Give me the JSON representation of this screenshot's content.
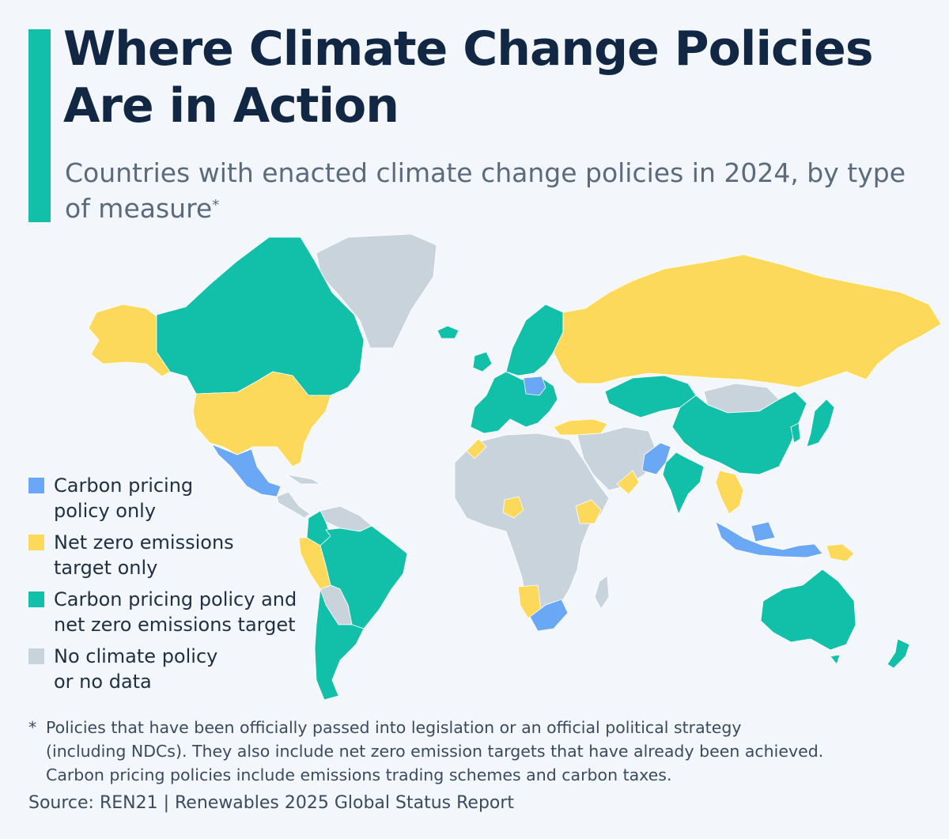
{
  "header": {
    "title": "Where Climate Change Policies Are in Action",
    "subtitle": "Countries with enacted climate change policies in 2024, by type of measure",
    "subtitle_mark": "*"
  },
  "colors": {
    "accent": "#12bfa9",
    "carbon_pricing_only": "#6aa8f5",
    "net_zero_only": "#fcd95a",
    "both": "#12bfa9",
    "none": "#c9d3dc"
  },
  "legend": {
    "items": [
      {
        "key": "carbon_pricing_only",
        "label": "Carbon pricing\npolicy only",
        "color": "#6aa8f5"
      },
      {
        "key": "net_zero_only",
        "label": "Net zero emissions\ntarget only",
        "color": "#fcd95a"
      },
      {
        "key": "both",
        "label": "Carbon pricing policy and\nnet zero emissions target",
        "color": "#12bfa9"
      },
      {
        "key": "none",
        "label": "No climate policy\nor no data",
        "color": "#c9d3dc"
      }
    ]
  },
  "footnote": {
    "marker": "*",
    "text": "Policies that have been officially passed into legislation or an official political strategy\n(including NDCs). They also include net zero emission targets that have already been achieved.\nCarbon pricing policies include emissions trading schemes and carbon taxes."
  },
  "source": "Source: REN21 | Renewables 2025 Global Status Report",
  "map": {
    "regions": [
      {
        "name": "alaska",
        "category": "net_zero_only"
      },
      {
        "name": "canada",
        "category": "both"
      },
      {
        "name": "greenland",
        "category": "none"
      },
      {
        "name": "iceland",
        "category": "both"
      },
      {
        "name": "usa",
        "category": "net_zero_only"
      },
      {
        "name": "mexico",
        "category": "carbon_pricing_only"
      },
      {
        "name": "central-america",
        "category": "none"
      },
      {
        "name": "colombia",
        "category": "both"
      },
      {
        "name": "venezuela",
        "category": "none"
      },
      {
        "name": "peru",
        "category": "net_zero_only"
      },
      {
        "name": "brazil",
        "category": "both"
      },
      {
        "name": "bolivia",
        "category": "none"
      },
      {
        "name": "chile-argentina",
        "category": "both"
      },
      {
        "name": "western-europe",
        "category": "both"
      },
      {
        "name": "poland",
        "category": "carbon_pricing_only"
      },
      {
        "name": "scandinavia",
        "category": "both"
      },
      {
        "name": "russia",
        "category": "net_zero_only"
      },
      {
        "name": "kazakhstan",
        "category": "both"
      },
      {
        "name": "mongolia",
        "category": "none"
      },
      {
        "name": "china",
        "category": "both"
      },
      {
        "name": "japan",
        "category": "both"
      },
      {
        "name": "korea",
        "category": "both"
      },
      {
        "name": "turkey",
        "category": "net_zero_only"
      },
      {
        "name": "middle-east",
        "category": "none"
      },
      {
        "name": "oman",
        "category": "net_zero_only"
      },
      {
        "name": "pakistan",
        "category": "carbon_pricing_only"
      },
      {
        "name": "india",
        "category": "both"
      },
      {
        "name": "southeast-asia",
        "category": "net_zero_only"
      },
      {
        "name": "indonesia",
        "category": "carbon_pricing_only"
      },
      {
        "name": "png",
        "category": "net_zero_only"
      },
      {
        "name": "africa",
        "category": "none"
      },
      {
        "name": "morocco",
        "category": "net_zero_only"
      },
      {
        "name": "nigeria",
        "category": "net_zero_only"
      },
      {
        "name": "ethiopia",
        "category": "net_zero_only"
      },
      {
        "name": "namibia",
        "category": "net_zero_only"
      },
      {
        "name": "south-africa",
        "category": "carbon_pricing_only"
      },
      {
        "name": "madagascar",
        "category": "none"
      },
      {
        "name": "australia",
        "category": "both"
      },
      {
        "name": "new-zealand",
        "category": "both"
      }
    ]
  }
}
